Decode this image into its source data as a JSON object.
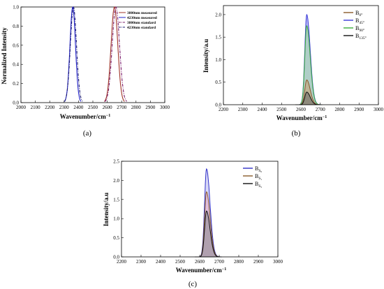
{
  "figure": {
    "panels": [
      {
        "label": "(a)",
        "xlabel": "Wavenumber/cm",
        "xlabel_sup": "−1",
        "ylabel": "Normalized Intensity"
      },
      {
        "label": "(b)",
        "xlabel": "Wavenumber/cm",
        "xlabel_sup": "−1",
        "ylabel": "Intensity/a.u"
      },
      {
        "label": "(c)",
        "xlabel": "Wavenumber/cm",
        "xlabel_sup": "−1",
        "ylabel": "Intensity/a.u"
      }
    ]
  },
  "chart_data": [
    {
      "type": "line",
      "title": "",
      "xlabel": "Wavenumber/cm−1",
      "ylabel": "Normalized Intensity",
      "xlim": [
        2000,
        3000
      ],
      "ylim": [
        0,
        1.0
      ],
      "xticks": [
        2000,
        2100,
        2200,
        2300,
        2400,
        2500,
        2600,
        2700,
        2800,
        2900,
        3000
      ],
      "yticks": [
        0.0,
        0.2,
        0.4,
        0.6,
        0.8,
        1.0
      ],
      "legend_position": "top-right",
      "series": [
        {
          "name": "3800nm measured",
          "color": "#a0352a",
          "dash": "solid",
          "peak_x": 2650,
          "peak_y": 1.0,
          "width": 55
        },
        {
          "name": "4230nm measured",
          "color": "#2222c8",
          "dash": "solid",
          "peak_x": 2360,
          "peak_y": 1.0,
          "width": 45
        },
        {
          "name": "3800nm standard",
          "color": "#7a1a6a",
          "dash": "dashdot",
          "peak_x": 2660,
          "peak_y": 1.0,
          "width": 60
        },
        {
          "name": "4230nm standard",
          "color": "#1a1a70",
          "dash": "dashdot",
          "peak_x": 2365,
          "peak_y": 1.0,
          "width": 50
        }
      ]
    },
    {
      "type": "area",
      "title": "",
      "xlabel": "Wavenumber/cm−1",
      "ylabel": "Intensity/a.u",
      "xlim": [
        2200,
        3000
      ],
      "ylim": [
        0,
        2.2
      ],
      "xticks": [
        2200,
        2300,
        2400,
        2500,
        2600,
        2700,
        2800,
        2900,
        3000
      ],
      "yticks": [
        0.0,
        0.5,
        1.0,
        1.5,
        2.0
      ],
      "legend_position": "top-right",
      "series": [
        {
          "name": "B",
          "sub": "0°",
          "color": "#8a5a2a",
          "fill": "#caa070",
          "peak_x": 2630,
          "peak_y": 0.55
        },
        {
          "name": "B",
          "sub": "45°",
          "color": "#3a3ad8",
          "fill": "#8080ee",
          "peak_x": 2630,
          "peak_y": 2.0
        },
        {
          "name": "B",
          "sub": "90°",
          "color": "#3cae3c",
          "fill": "#a8e0a0",
          "peak_x": 2630,
          "peak_y": 1.75
        },
        {
          "name": "B",
          "sub": "135°",
          "color": "#111111",
          "fill": "#666666",
          "peak_x": 2630,
          "peak_y": 0.28
        }
      ]
    },
    {
      "type": "area",
      "title": "",
      "xlabel": "Wavenumber/cm−1",
      "ylabel": "Intensity/a.u",
      "xlim": [
        2200,
        3000
      ],
      "ylim": [
        0,
        2.5
      ],
      "xticks": [
        2200,
        2300,
        2400,
        2500,
        2600,
        2700,
        2800,
        2900,
        3000
      ],
      "yticks": [
        0.0,
        0.5,
        1.0,
        1.5,
        2.0,
        2.5
      ],
      "legend_position": "top-right",
      "series": [
        {
          "name": "B",
          "sub": "S₀",
          "color": "#3030c8",
          "fill": "#b8b8f0",
          "peak_x": 2635,
          "peak_y": 2.3
        },
        {
          "name": "B",
          "sub": "S₁",
          "color": "#8a5a2a",
          "fill": "#e8a8c8",
          "peak_x": 2635,
          "peak_y": 1.7
        },
        {
          "name": "B",
          "sub": "S₂",
          "color": "#111111",
          "fill": "#888888",
          "peak_x": 2635,
          "peak_y": 1.2
        }
      ]
    }
  ]
}
